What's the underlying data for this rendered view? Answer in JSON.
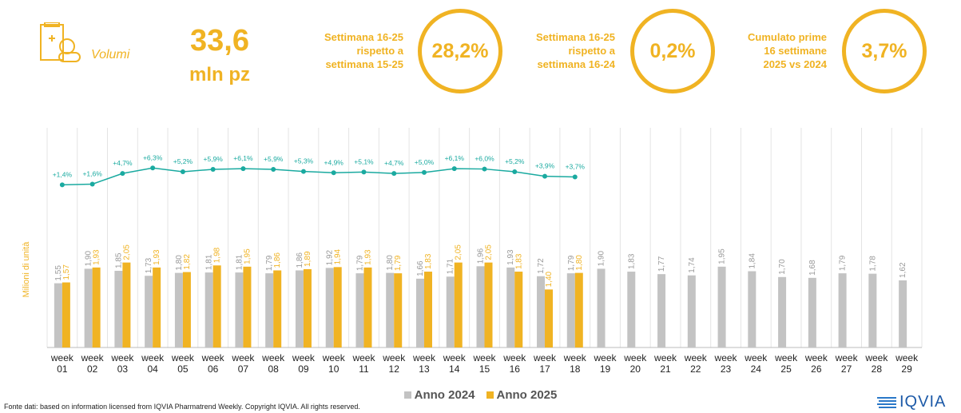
{
  "header": {
    "section": "Volumi",
    "volume": "33,6",
    "volume_unit": "mln pz",
    "kpis": [
      {
        "label": [
          "Settimana 16-25",
          "rispetto a",
          "settimana 15-25"
        ],
        "value": "28,2%"
      },
      {
        "label": [
          "Settimana 16-25",
          "rispetto a",
          "settimana 16-24"
        ],
        "value": "0,2%"
      },
      {
        "label": [
          "Cumulato prime",
          "16 settimane",
          "2025 vs 2024"
        ],
        "value": "3,7%"
      }
    ]
  },
  "chart_data": {
    "type": "bar",
    "y_label": "Milioni di unità",
    "categories": [
      "week 01",
      "week 02",
      "week 03",
      "week 04",
      "week 05",
      "week 06",
      "week 07",
      "week 08",
      "week 09",
      "week 10",
      "week 11",
      "week 12",
      "week 13",
      "week 14",
      "week 15",
      "week 16",
      "week 17",
      "week 18",
      "week 19",
      "week 20",
      "week 21",
      "week 22",
      "week 23",
      "week 24",
      "week 25",
      "week 26",
      "week 27",
      "week 28",
      "week 29"
    ],
    "ylim": [
      0,
      5.3
    ],
    "y2lim": [
      -46,
      18
    ],
    "series": [
      {
        "name": "Anno 2024",
        "color": "#c3c3c3",
        "values": [
          1.55,
          1.9,
          1.85,
          1.73,
          1.8,
          1.81,
          1.81,
          1.79,
          1.86,
          1.92,
          1.79,
          1.8,
          1.66,
          1.71,
          1.96,
          1.93,
          1.72,
          1.79,
          1.9,
          1.83,
          1.77,
          1.74,
          1.95,
          1.84,
          1.7,
          1.68,
          1.79,
          1.78,
          1.62
        ],
        "value_labels": [
          "1,55",
          "1,90",
          "1,85",
          "1,73",
          "1,80",
          "1,81",
          "1,81",
          "1,79",
          "1,86",
          "1,92",
          "1,79",
          "1,80",
          "1,66",
          "1,71",
          "1,96",
          "1,93",
          "1,72",
          "1,79",
          "1,90",
          "1,83",
          "1,77",
          "1,74",
          "1,95",
          "1,84",
          "1,70",
          "1,68",
          "1,79",
          "1,78",
          "1,62"
        ]
      },
      {
        "name": "Anno 2025",
        "color": "#f0b323",
        "values": [
          1.57,
          1.93,
          2.05,
          1.93,
          1.82,
          1.98,
          1.95,
          1.86,
          1.89,
          1.94,
          1.93,
          1.79,
          1.83,
          2.05,
          2.05,
          1.83,
          1.4,
          1.8,
          null,
          null,
          null,
          null,
          null,
          null,
          null,
          null,
          null,
          null,
          null
        ],
        "value_labels": [
          "1,57",
          "1,93",
          "2,05",
          "1,93",
          "1,82",
          "1,98",
          "1,95",
          "1,86",
          "1,89",
          "1,94",
          "1,93",
          "1,79",
          "1,83",
          "2,05",
          "2,05",
          "1,83",
          "1,40",
          "1,80",
          null,
          null,
          null,
          null,
          null,
          null,
          null,
          null,
          null,
          null,
          null
        ]
      },
      {
        "type": "line",
        "axis": "y2",
        "color": "#1aaaa0",
        "values": [
          1.4,
          1.6,
          4.7,
          6.3,
          5.2,
          5.9,
          6.1,
          5.9,
          5.3,
          4.9,
          5.1,
          4.7,
          5.0,
          6.1,
          6.0,
          5.2,
          3.9,
          3.7,
          null,
          null,
          null,
          null,
          null,
          null,
          null,
          null,
          null,
          null,
          null
        ],
        "value_labels": [
          "+1,4%",
          "+1,6%",
          "+4,7%",
          "+6,3%",
          "+5,2%",
          "+5,9%",
          "+6,1%",
          "+5,9%",
          "+5,3%",
          "+4,9%",
          "+5,1%",
          "+4,7%",
          "+5,0%",
          "+6,1%",
          "+6,0%",
          "+5,2%",
          "+3,9%",
          "+3,7%",
          null,
          null,
          null,
          null,
          null,
          null,
          null,
          null,
          null,
          null,
          null
        ]
      }
    ],
    "legend": "bottom"
  },
  "footer": {
    "source": "Fonte dati: based on information licensed from IQVIA Pharmatrend Weekly. Copyright IQVIA. All rights reserved.",
    "logo": "IQVIA"
  }
}
